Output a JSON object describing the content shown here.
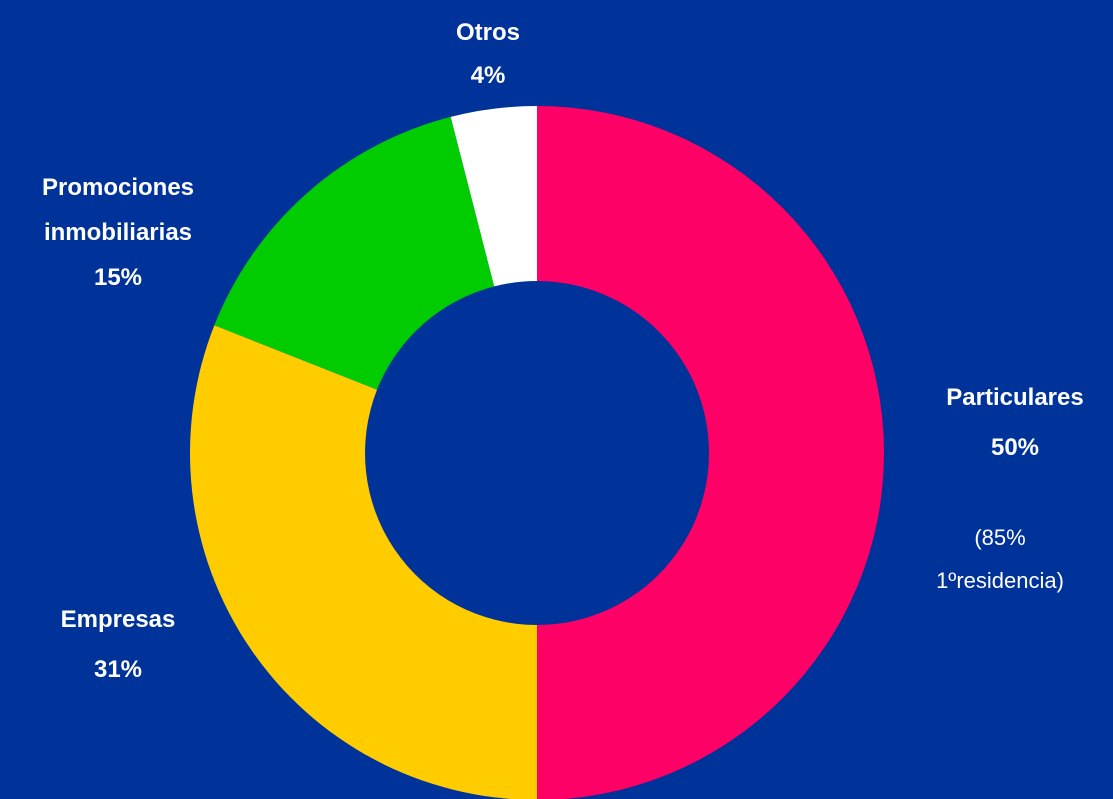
{
  "chart_data": {
    "type": "pie",
    "style": "donut",
    "background_color": "#003399",
    "slices": [
      {
        "label": "Particulares",
        "value": 50,
        "value_label": "50%",
        "note_lines": [
          "(85%",
          "1ºresidencia)"
        ],
        "color": "#FF0066"
      },
      {
        "label": "Empresas",
        "value": 31,
        "value_label": "31%",
        "color": "#FFCC00"
      },
      {
        "label_lines": [
          "Promociones",
          "inmobiliarias"
        ],
        "value": 15,
        "value_label": "15%",
        "color": "#00CC00"
      },
      {
        "label": "Otros",
        "value": 4,
        "value_label": "4%",
        "color": "#FFFFFF"
      }
    ],
    "start_direction": "top",
    "clockwise": true,
    "legend": "none"
  }
}
